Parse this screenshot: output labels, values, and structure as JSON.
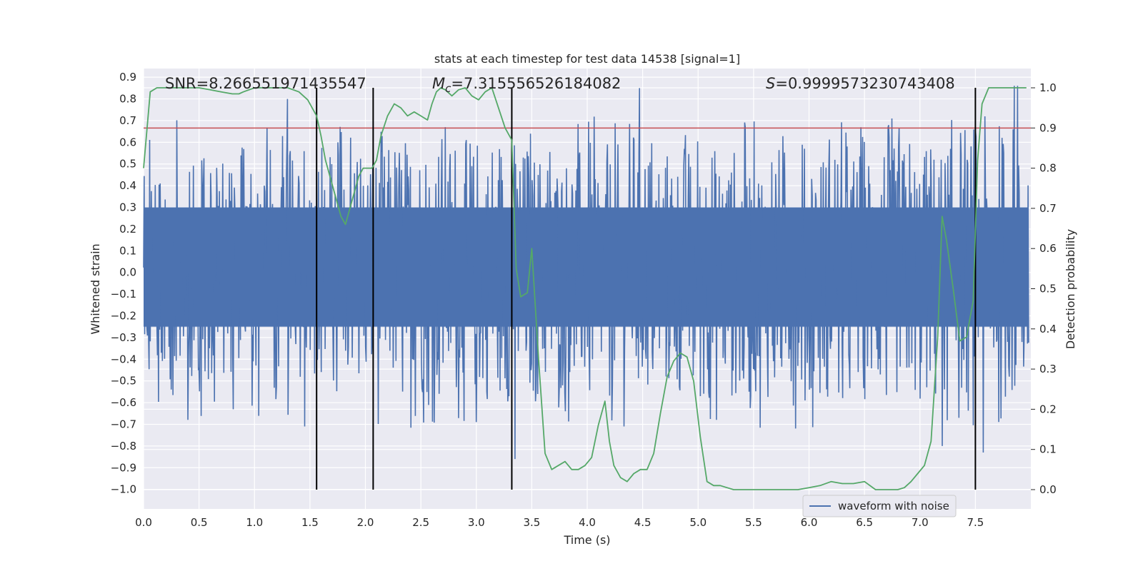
{
  "chart_data": {
    "type": "line",
    "title": "stats at each timestep for test data 14538 [signal=1]",
    "xlabel": "Time (s)",
    "ylabel": "Whitened strain",
    "y2label": "Detection probability",
    "xlim": [
      0.0,
      8.0
    ],
    "ylim": [
      -1.09,
      0.94
    ],
    "y2lim": [
      -0.048,
      1.048
    ],
    "xticks": [
      0.0,
      0.5,
      1.0,
      1.5,
      2.0,
      2.5,
      3.0,
      3.5,
      4.0,
      4.5,
      5.0,
      5.5,
      6.0,
      6.5,
      7.0,
      7.5
    ],
    "xtick_labels": [
      "0.0",
      "0.5",
      "1.0",
      "1.5",
      "2.0",
      "2.5",
      "3.0",
      "3.5",
      "4.0",
      "4.5",
      "5.0",
      "5.5",
      "6.0",
      "6.5",
      "7.0",
      "7.5"
    ],
    "yticks": [
      0.9,
      0.8,
      0.7,
      0.6,
      0.5,
      0.4,
      0.3,
      0.2,
      0.1,
      0.0,
      -0.1,
      -0.2,
      -0.3,
      -0.4,
      -0.5,
      -0.6,
      -0.7,
      -0.8,
      -0.9,
      -1.0
    ],
    "ytick_labels": [
      "0.9",
      "0.8",
      "0.7",
      "0.6",
      "0.5",
      "0.4",
      "0.3",
      "0.2",
      "0.1",
      "0.0",
      "−0.1",
      "−0.2",
      "−0.3",
      "−0.4",
      "−0.5",
      "−0.6",
      "−0.7",
      "−0.8",
      "−0.9",
      "−1.0"
    ],
    "y2ticks": [
      0.0,
      0.1,
      0.2,
      0.3,
      0.4,
      0.5,
      0.6,
      0.7,
      0.8,
      0.9,
      1.0
    ],
    "y2tick_labels": [
      "0.0",
      "0.1",
      "0.2",
      "0.3",
      "0.4",
      "0.5",
      "0.6",
      "0.7",
      "0.8",
      "0.9",
      "1.0"
    ],
    "annotations": {
      "snr": "SNR=8.266551971435547",
      "mc_symbol": "M",
      "mc_sub": "c",
      "mc_value": "=7.315556526184082",
      "s_symbol": "S",
      "s_value": "=0.9999573230743408"
    },
    "legend": {
      "label": "waveform with noise",
      "position": "lower-right"
    },
    "threshold": 0.9,
    "vertical_lines": [
      1.56,
      2.07,
      3.32,
      7.5
    ],
    "waveform": {
      "name": "waveform with noise",
      "color": "#4c72b0",
      "sample_count": 1600,
      "core_band": [
        -0.25,
        0.3
      ],
      "peaks_up": [
        [
          1.3,
          0.8
        ],
        [
          4.47,
          0.85
        ],
        [
          7.85,
          0.86
        ],
        [
          7.88,
          0.86
        ]
      ],
      "peaks_down": [
        [
          3.35,
          -0.86
        ],
        [
          1.45,
          -0.71
        ],
        [
          3.0,
          -0.69
        ],
        [
          7.2,
          -0.8
        ],
        [
          7.57,
          -0.83
        ]
      ]
    },
    "series": [
      {
        "name": "Detection probability",
        "color": "#55a868",
        "axis": "right",
        "x": [
          0.0,
          0.06,
          0.12,
          0.2,
          0.3,
          0.4,
          0.5,
          0.6,
          0.7,
          0.8,
          0.86,
          0.9,
          1.0,
          1.1,
          1.2,
          1.3,
          1.4,
          1.44,
          1.48,
          1.52,
          1.56,
          1.6,
          1.64,
          1.7,
          1.74,
          1.78,
          1.82,
          1.86,
          1.9,
          1.94,
          1.98,
          2.02,
          2.06,
          2.1,
          2.14,
          2.2,
          2.26,
          2.32,
          2.38,
          2.44,
          2.5,
          2.56,
          2.6,
          2.64,
          2.68,
          2.72,
          2.78,
          2.84,
          2.9,
          2.96,
          3.02,
          3.08,
          3.14,
          3.2,
          3.26,
          3.32,
          3.36,
          3.4,
          3.46,
          3.5,
          3.56,
          3.62,
          3.68,
          3.74,
          3.8,
          3.86,
          3.92,
          3.98,
          4.04,
          4.1,
          4.16,
          4.2,
          4.24,
          4.3,
          4.36,
          4.42,
          4.48,
          4.54,
          4.6,
          4.66,
          4.72,
          4.78,
          4.84,
          4.9,
          4.96,
          5.02,
          5.08,
          5.14,
          5.2,
          5.26,
          5.32,
          5.4,
          5.6,
          5.8,
          5.9,
          6.0,
          6.1,
          6.2,
          6.3,
          6.4,
          6.5,
          6.6,
          6.7,
          6.8,
          6.86,
          6.92,
          6.98,
          7.04,
          7.1,
          7.16,
          7.2,
          7.24,
          7.3,
          7.36,
          7.42,
          7.48,
          7.52,
          7.56,
          7.62,
          7.68,
          7.74,
          7.8,
          7.9,
          7.96
        ],
        "values": [
          0.8,
          0.99,
          1.0,
          1.0,
          1.0,
          1.0,
          1.0,
          0.995,
          0.99,
          0.985,
          0.985,
          0.99,
          1.0,
          1.0,
          1.0,
          1.0,
          0.99,
          0.98,
          0.97,
          0.95,
          0.93,
          0.88,
          0.82,
          0.76,
          0.72,
          0.68,
          0.66,
          0.7,
          0.74,
          0.78,
          0.8,
          0.8,
          0.8,
          0.82,
          0.88,
          0.93,
          0.96,
          0.95,
          0.93,
          0.94,
          0.93,
          0.92,
          0.96,
          0.99,
          1.0,
          0.995,
          0.98,
          0.995,
          1.0,
          0.98,
          0.97,
          0.99,
          1.0,
          0.95,
          0.9,
          0.87,
          0.55,
          0.48,
          0.49,
          0.6,
          0.33,
          0.09,
          0.05,
          0.06,
          0.07,
          0.05,
          0.05,
          0.06,
          0.08,
          0.16,
          0.22,
          0.12,
          0.06,
          0.03,
          0.02,
          0.04,
          0.05,
          0.05,
          0.09,
          0.19,
          0.28,
          0.32,
          0.34,
          0.33,
          0.27,
          0.13,
          0.02,
          0.01,
          0.01,
          0.005,
          0.0,
          0.0,
          0.0,
          0.0,
          0.0,
          0.005,
          0.01,
          0.02,
          0.015,
          0.015,
          0.02,
          0.0,
          0.0,
          0.0,
          0.005,
          0.02,
          0.04,
          0.06,
          0.12,
          0.38,
          0.68,
          0.62,
          0.5,
          0.37,
          0.38,
          0.47,
          0.82,
          0.96,
          1.0,
          1.0,
          1.0,
          1.0,
          1.0,
          1.0
        ]
      }
    ]
  }
}
